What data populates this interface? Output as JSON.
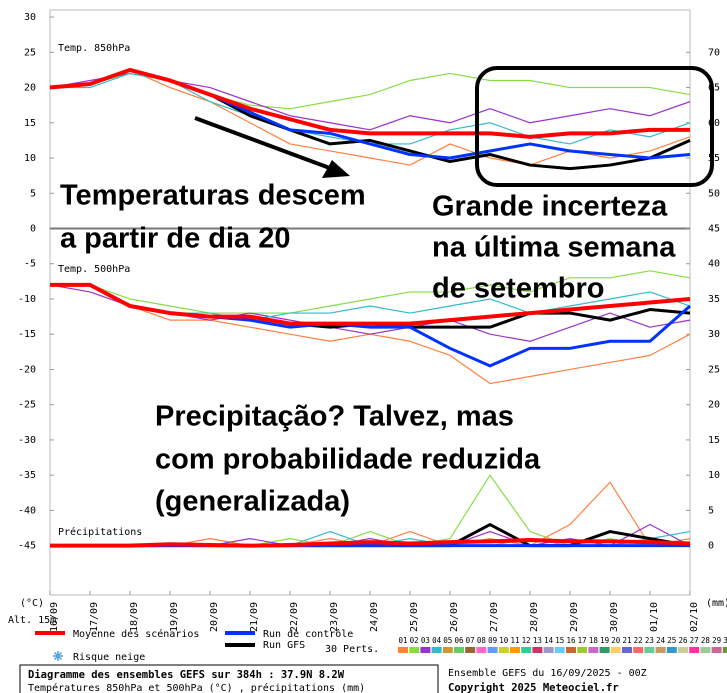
{
  "chart_data": {
    "type": "line",
    "categories": [
      "16/09",
      "17/09",
      "18/09",
      "19/09",
      "20/09",
      "21/09",
      "22/09",
      "23/09",
      "24/09",
      "25/09",
      "26/09",
      "27/09",
      "28/09",
      "29/09",
      "30/09",
      "01/10",
      "02/10"
    ],
    "panel_labels": {
      "t850": "Temp. 850hPa",
      "t500": "Temp. 500hPa",
      "precip": "Précipitations"
    },
    "ylabel": "(°C)",
    "y2label": "(mm)",
    "altitude": "Alt. 15m",
    "ylim": [
      -52,
      31
    ],
    "yticks": [
      30,
      25,
      20,
      15,
      10,
      5,
      0,
      -5,
      -10,
      -15,
      -20,
      -25,
      -30,
      -35,
      -40,
      -45
    ],
    "y2lim": [
      -7,
      76
    ],
    "y2ticks": [
      70,
      65,
      60,
      55,
      50,
      45,
      40,
      35,
      30,
      25,
      20,
      15,
      10,
      5,
      0
    ],
    "series": [
      {
        "name": "Moyenne des scénarios",
        "color": "#ff0000",
        "t850": [
          20,
          20.5,
          22.5,
          21,
          19,
          17,
          15.5,
          14,
          13.5,
          13.5,
          13.5,
          13.5,
          13,
          13.5,
          13.5,
          14,
          14
        ],
        "t500": [
          -8,
          -8,
          -11,
          -12,
          -12.5,
          -12.5,
          -13.5,
          -13.5,
          -13.5,
          -13.5,
          -13,
          -12.5,
          -12,
          -11.5,
          -11,
          -10.5,
          -10
        ],
        "precip": [
          0,
          0,
          0,
          0.2,
          0.1,
          0,
          0.1,
          0.3,
          0.5,
          0.3,
          0.5,
          0.6,
          0.8,
          0.6,
          0.6,
          0.5,
          0.3
        ]
      },
      {
        "name": "Run de contrôle",
        "color": "#0033ff",
        "t850": [
          20,
          20.5,
          22.5,
          21,
          19,
          16.5,
          14,
          13.5,
          12,
          10.5,
          10,
          11,
          12,
          11,
          10.5,
          10,
          10.5
        ],
        "t500": [
          -8,
          -8,
          -11,
          -12,
          -12.5,
          -13,
          -14,
          -13.5,
          -14,
          -14,
          -17,
          -19.5,
          -17,
          -17,
          -16,
          -16,
          -11
        ],
        "precip": [
          0,
          0,
          0,
          0,
          0,
          0,
          0,
          0,
          0,
          0,
          0,
          0,
          0,
          0,
          0,
          0,
          0
        ]
      },
      {
        "name": "Run GFS",
        "color": "#000000",
        "t850": [
          20,
          20.5,
          22.5,
          21,
          19,
          16,
          14,
          12,
          12.5,
          11,
          9.5,
          10.5,
          9,
          8.5,
          9,
          10,
          12.5
        ],
        "t500": [
          -8,
          -8,
          -11,
          -12,
          -12.5,
          -12.5,
          -13.5,
          -14,
          -13.5,
          -14,
          -14,
          -14,
          -12,
          -12,
          -13,
          -11.5,
          -12
        ],
        "precip": [
          0,
          0,
          0,
          0,
          0,
          0,
          0,
          0,
          0,
          0,
          0,
          3,
          0,
          0,
          2,
          1,
          0
        ]
      }
    ],
    "snow_label": "Risque neige",
    "perturbations": {
      "label": "30 Perts.",
      "members": [
        {
          "name": "01",
          "color": "#ff8040",
          "t850": [
            20,
            20.5,
            22.5,
            20,
            18,
            15,
            12,
            11,
            10,
            9,
            12,
            10,
            9,
            11,
            10,
            11,
            13
          ],
          "t500": [
            -8,
            -8,
            -11,
            -13,
            -13,
            -14,
            -15,
            -16,
            -15,
            -16,
            -18,
            -22,
            -21,
            -20,
            -19,
            -18,
            -15
          ],
          "precip": [
            0,
            0,
            0,
            0,
            1,
            0,
            0,
            1,
            0,
            2,
            0,
            1,
            0,
            3,
            9,
            0,
            1
          ]
        },
        {
          "name": "02",
          "color": "#88dd44",
          "t850": [
            20,
            20.5,
            22,
            21,
            19,
            17.5,
            17,
            18,
            19,
            21,
            22,
            21,
            21,
            20,
            20,
            20,
            19
          ],
          "t500": [
            -8,
            -8,
            -10,
            -11,
            -12,
            -12,
            -12,
            -11,
            -10,
            -9,
            -9,
            -8,
            -9,
            -7,
            -7,
            -6,
            -7
          ],
          "precip": [
            0,
            0,
            0,
            0,
            0,
            0,
            1,
            0,
            2,
            0,
            1,
            10,
            2,
            0,
            1,
            0,
            0
          ]
        },
        {
          "name": "03",
          "color": "#9933cc",
          "t850": [
            20,
            21,
            22,
            21,
            20,
            18,
            16,
            15,
            14,
            16,
            15,
            17,
            15,
            16,
            17,
            16,
            18
          ],
          "t500": [
            -8,
            -9,
            -11,
            -12,
            -13,
            -12,
            -13,
            -14,
            -15,
            -14,
            -13,
            -15,
            -16,
            -14,
            -12,
            -14,
            -13
          ],
          "precip": [
            0,
            0,
            0,
            0,
            0,
            1,
            0,
            0,
            1,
            0,
            0,
            2,
            0,
            1,
            0,
            3,
            0
          ]
        },
        {
          "name": "04",
          "color": "#33bbcc",
          "t850": [
            20,
            20,
            22,
            21,
            18,
            16,
            14,
            13,
            12,
            12,
            14,
            15,
            13,
            12,
            14,
            13,
            15
          ],
          "t500": [
            -8,
            -8,
            -11,
            -12,
            -12,
            -13,
            -12,
            -12,
            -11,
            -12,
            -11,
            -10,
            -12,
            -11,
            -10,
            -9,
            -11
          ],
          "precip": [
            0,
            0,
            0,
            0,
            0,
            0,
            0,
            2,
            0,
            1,
            0,
            0,
            1,
            0,
            0,
            1,
            2
          ]
        },
        {
          "name": "05",
          "color": "#cc9933"
        },
        {
          "name": "06",
          "color": "#66cc66"
        },
        {
          "name": "07",
          "color": "#996633"
        },
        {
          "name": "08",
          "color": "#ff66cc"
        },
        {
          "name": "09",
          "color": "#6699ff"
        },
        {
          "name": "10",
          "color": "#cccc33"
        },
        {
          "name": "11",
          "color": "#ff9900"
        },
        {
          "name": "12",
          "color": "#33cc99"
        },
        {
          "name": "13",
          "color": "#cc3366"
        },
        {
          "name": "14",
          "color": "#9999cc"
        },
        {
          "name": "15",
          "color": "#66ccff"
        },
        {
          "name": "16",
          "color": "#cc6633"
        },
        {
          "name": "17",
          "color": "#99cc33"
        },
        {
          "name": "18",
          "color": "#cc66cc"
        },
        {
          "name": "19",
          "color": "#339966"
        },
        {
          "name": "20",
          "color": "#ffcc66"
        },
        {
          "name": "21",
          "color": "#6666cc"
        },
        {
          "name": "22",
          "color": "#ff6666"
        },
        {
          "name": "23",
          "color": "#66cc99"
        },
        {
          "name": "24",
          "color": "#cc9966"
        },
        {
          "name": "25",
          "color": "#3399cc"
        },
        {
          "name": "26",
          "color": "#cccc99"
        },
        {
          "name": "27",
          "color": "#ff3399"
        },
        {
          "name": "28",
          "color": "#99cc99"
        },
        {
          "name": "29",
          "color": "#cc6699"
        },
        {
          "name": "30",
          "color": "#669933"
        }
      ]
    },
    "annotations": [
      [
        "Temperaturas descem",
        "a partir de dia 20"
      ],
      [
        "Grande incerteza",
        "na última semana",
        "de setembro"
      ],
      [
        "Precipitação? Talvez, mas",
        "com probabilidade reduzida",
        "(generalizada)"
      ]
    ],
    "footer": {
      "title": "Diagramme des ensembles GEFS sur 384h : 37.9N 8.2W",
      "subtitle": "Températures 850hPa et 500hPa (°C) , précipitations (mm)",
      "run": "Ensemble GEFS du 16/09/2025 - 00Z",
      "copyright": "Copyright 2025 Meteociel.fr"
    }
  }
}
